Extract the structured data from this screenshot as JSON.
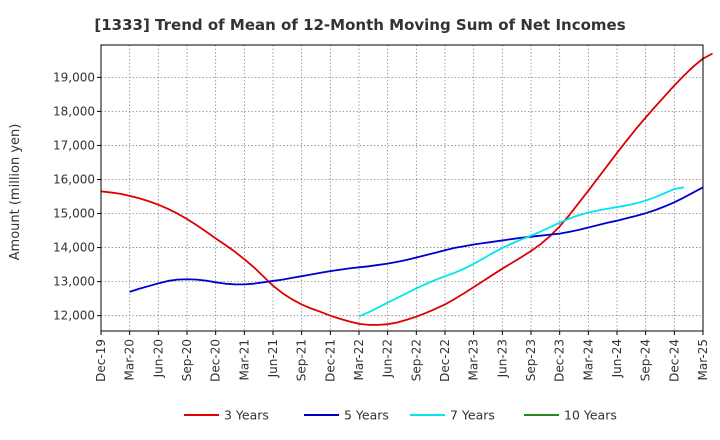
{
  "chart_data": {
    "type": "line",
    "title": "[1333]  Trend of Mean of 12-Month Moving Sum of Net Incomes",
    "xlabel": "",
    "ylabel": "Amount (million yen)",
    "x_ticks": [
      "Dec-19",
      "Mar-20",
      "Jun-20",
      "Sep-20",
      "Dec-20",
      "Mar-21",
      "Jun-21",
      "Sep-21",
      "Dec-21",
      "Mar-22",
      "Jun-22",
      "Sep-22",
      "Dec-22",
      "Mar-23",
      "Jun-23",
      "Sep-23",
      "Dec-23",
      "Mar-24",
      "Jun-24",
      "Sep-24",
      "Dec-24",
      "Mar-25"
    ],
    "y_ticks": [
      12000,
      13000,
      14000,
      15000,
      16000,
      17000,
      18000,
      19000
    ],
    "y_tick_labels": [
      "12,000",
      "13,000",
      "14,000",
      "15,000",
      "16,000",
      "17,000",
      "18,000",
      "19,000"
    ],
    "ylim": [
      11550,
      19950
    ],
    "grid": true,
    "legend_position": "bottom",
    "series": [
      {
        "name": "3 Years",
        "color": "#dd0000",
        "x_start_index": 0,
        "values": [
          15650,
          15620,
          15580,
          15520,
          15450,
          15360,
          15260,
          15140,
          15000,
          14840,
          14660,
          14470,
          14270,
          14080,
          13880,
          13660,
          13420,
          13150,
          12880,
          12660,
          12480,
          12330,
          12210,
          12110,
          12000,
          11910,
          11830,
          11760,
          11730,
          11730,
          11750,
          11800,
          11880,
          11970,
          12080,
          12200,
          12330,
          12490,
          12660,
          12840,
          13020,
          13200,
          13380,
          13550,
          13720,
          13900,
          14100,
          14340,
          14620,
          14950,
          15310,
          15670,
          16040,
          16410,
          16780,
          17140,
          17490,
          17820,
          18140,
          18450,
          18760,
          19050,
          19320,
          19550,
          19700
        ]
      },
      {
        "name": "5 Years",
        "color": "#0000cc",
        "x_start_index": 3,
        "values": [
          12700,
          12790,
          12870,
          12950,
          13020,
          13060,
          13070,
          13060,
          13030,
          12980,
          12940,
          12920,
          12920,
          12940,
          12980,
          13020,
          13060,
          13110,
          13160,
          13210,
          13260,
          13310,
          13350,
          13390,
          13420,
          13450,
          13490,
          13530,
          13580,
          13640,
          13710,
          13780,
          13850,
          13920,
          13990,
          14040,
          14090,
          14130,
          14170,
          14210,
          14250,
          14290,
          14320,
          14350,
          14380,
          14410,
          14460,
          14520,
          14590,
          14660,
          14730,
          14790,
          14860,
          14930,
          15010,
          15100,
          15210,
          15330,
          15470,
          15620,
          15770
        ]
      },
      {
        "name": "7 Years",
        "color": "#00e5ee",
        "x_start_index": 27,
        "values": [
          11980,
          12100,
          12240,
          12380,
          12520,
          12660,
          12800,
          12930,
          13050,
          13160,
          13260,
          13380,
          13520,
          13680,
          13840,
          13990,
          14120,
          14240,
          14350,
          14470,
          14600,
          14730,
          14850,
          14950,
          15030,
          15090,
          15140,
          15190,
          15240,
          15300,
          15380,
          15480,
          15600,
          15720,
          15770
        ]
      },
      {
        "name": "10 Years",
        "color": "#228b22",
        "x_start_index": 0,
        "values": []
      }
    ]
  }
}
